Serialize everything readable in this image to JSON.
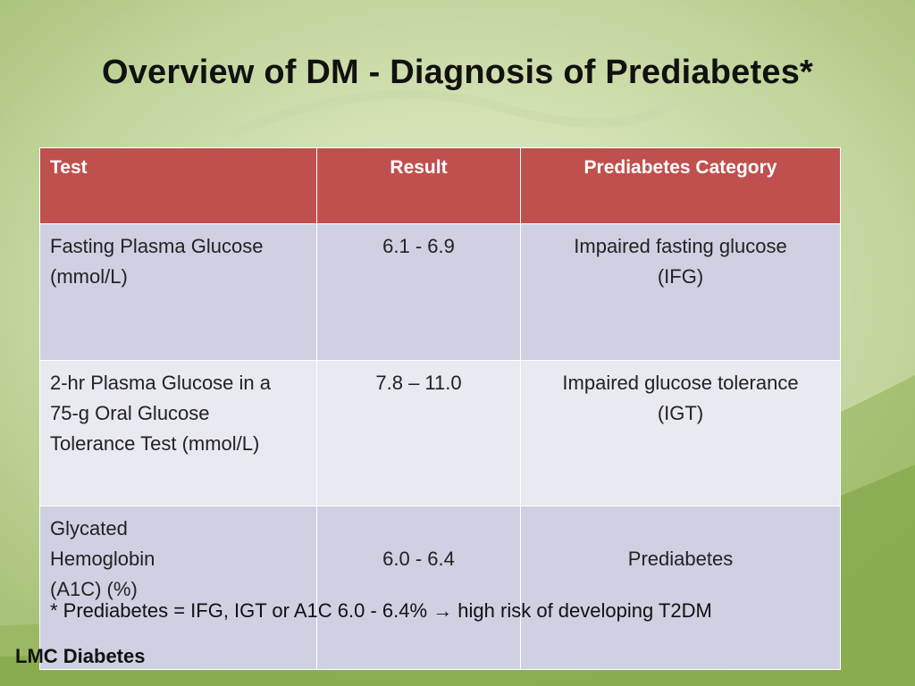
{
  "slide": {
    "title": "Overview of DM - Diagnosis of Prediabetes*",
    "footer": "LMC Diabetes"
  },
  "table": {
    "headers": [
      "Test",
      "Result",
      "Prediabetes Category"
    ],
    "rows": [
      {
        "test": [
          "Fasting Plasma Glucose",
          "(mmol/L)"
        ],
        "result": "6.1 - 6.9",
        "category": [
          "Impaired fasting glucose",
          "(IFG)"
        ]
      },
      {
        "test": [
          "2-hr Plasma Glucose in a",
          "75-g Oral Glucose",
          "Tolerance Test (mmol/L)"
        ],
        "result": "7.8 – 11.0",
        "category": [
          "Impaired glucose tolerance",
          "(IGT)"
        ]
      },
      {
        "test": [
          "Glycated",
          "Hemoglobin",
          "(A1C) (%)"
        ],
        "result": "6.0 - 6.4",
        "category": [
          "Prediabetes"
        ]
      }
    ]
  },
  "footnote": {
    "before": "* Prediabetes = IFG, IGT or A1C 6.0 - 6.4% ",
    "arrow": "→",
    "after": " high risk of developing T2DM"
  },
  "colors": {
    "header_bg": "#c0504d",
    "row_band_dark": "#cfd0e2",
    "row_band_light": "#e8e9f1",
    "background": "#b9cf8f"
  }
}
